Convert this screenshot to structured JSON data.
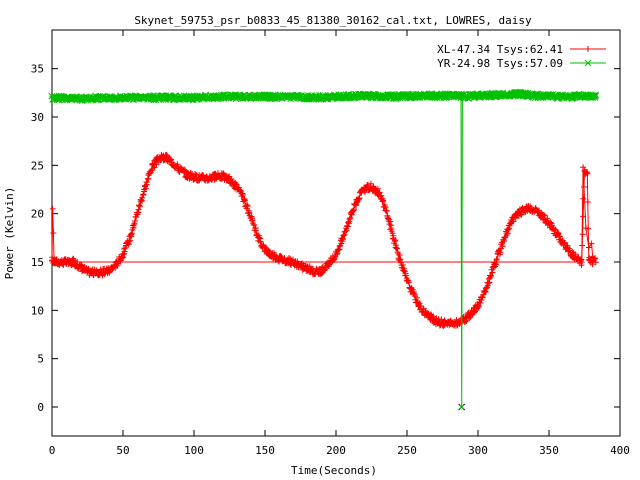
{
  "chart_data": {
    "type": "line",
    "title": "Skynet_59753_psr_b0833_45_81380_30162_cal.txt, LOWRES, daisy",
    "xlabel": "Time(Seconds)",
    "ylabel": "Power (Kelvin)",
    "xlim": [
      0,
      400
    ],
    "ylim": [
      -3,
      39
    ],
    "xticks": [
      0,
      50,
      100,
      150,
      200,
      250,
      300,
      350,
      400
    ],
    "yticks": [
      0,
      5,
      10,
      15,
      20,
      25,
      30,
      35
    ],
    "grid": false,
    "legend_position": "top-right",
    "series": [
      {
        "name": "XL-47.34 Tsys:62.41",
        "color": "#ff0000",
        "marker": "plus",
        "points": [
          [
            0,
            15.2
          ],
          [
            3,
            15.0
          ],
          [
            8,
            15.0
          ],
          [
            12,
            14.9
          ],
          [
            15,
            15.0
          ],
          [
            20,
            14.5
          ],
          [
            25,
            14.0
          ],
          [
            30,
            13.9
          ],
          [
            35,
            13.9
          ],
          [
            40,
            14.1
          ],
          [
            45,
            14.7
          ],
          [
            50,
            15.8
          ],
          [
            55,
            17.5
          ],
          [
            60,
            20.0
          ],
          [
            65,
            22.5
          ],
          [
            70,
            24.7
          ],
          [
            75,
            25.7
          ],
          [
            80,
            25.8
          ],
          [
            85,
            25.3
          ],
          [
            90,
            24.6
          ],
          [
            95,
            24.0
          ],
          [
            100,
            23.8
          ],
          [
            105,
            23.7
          ],
          [
            110,
            23.7
          ],
          [
            115,
            23.8
          ],
          [
            120,
            23.9
          ],
          [
            125,
            23.5
          ],
          [
            130,
            22.8
          ],
          [
            135,
            21.5
          ],
          [
            140,
            19.5
          ],
          [
            145,
            17.6
          ],
          [
            150,
            16.3
          ],
          [
            155,
            15.7
          ],
          [
            160,
            15.4
          ],
          [
            165,
            15.2
          ],
          [
            170,
            14.9
          ],
          [
            175,
            14.6
          ],
          [
            180,
            14.3
          ],
          [
            185,
            14.0
          ],
          [
            190,
            14.1
          ],
          [
            195,
            14.7
          ],
          [
            200,
            15.8
          ],
          [
            205,
            17.5
          ],
          [
            210,
            19.7
          ],
          [
            215,
            21.5
          ],
          [
            220,
            22.5
          ],
          [
            225,
            22.8
          ],
          [
            230,
            22.2
          ],
          [
            235,
            20.5
          ],
          [
            240,
            17.8
          ],
          [
            245,
            15.2
          ],
          [
            250,
            13.1
          ],
          [
            255,
            11.5
          ],
          [
            260,
            10.2
          ],
          [
            265,
            9.4
          ],
          [
            270,
            8.9
          ],
          [
            275,
            8.7
          ],
          [
            280,
            8.6
          ],
          [
            285,
            8.7
          ],
          [
            290,
            9.0
          ],
          [
            295,
            9.6
          ],
          [
            300,
            10.5
          ],
          [
            305,
            12.0
          ],
          [
            310,
            14.0
          ],
          [
            315,
            16.0
          ],
          [
            320,
            18.0
          ],
          [
            325,
            19.5
          ],
          [
            330,
            20.2
          ],
          [
            335,
            20.5
          ],
          [
            340,
            20.3
          ],
          [
            345,
            19.8
          ],
          [
            350,
            19.0
          ],
          [
            355,
            18.0
          ],
          [
            360,
            17.0
          ],
          [
            365,
            16.0
          ],
          [
            370,
            15.3
          ],
          [
            373,
            15.0
          ],
          [
            375,
            24.3
          ],
          [
            377,
            24.3
          ],
          [
            378,
            15.2
          ],
          [
            380,
            15.1
          ],
          [
            383,
            15.1
          ]
        ],
        "spikes": [
          [
            0,
            15.2
          ],
          [
            0.5,
            20.5
          ],
          [
            1,
            18.0
          ],
          [
            1.5,
            15.0
          ],
          [
            373,
            15.0
          ],
          [
            374,
            24.8
          ],
          [
            376,
            18.5
          ],
          [
            378,
            16.5
          ],
          [
            380,
            16.9
          ],
          [
            381,
            15.1
          ]
        ]
      },
      {
        "name": "YR-24.98 Tsys:57.09",
        "color": "#00c000",
        "marker": "cross",
        "points": [
          [
            0,
            32.0
          ],
          [
            20,
            31.9
          ],
          [
            40,
            32.0
          ],
          [
            60,
            32.0
          ],
          [
            80,
            32.0
          ],
          [
            100,
            32.0
          ],
          [
            120,
            32.1
          ],
          [
            140,
            32.1
          ],
          [
            160,
            32.1
          ],
          [
            180,
            32.0
          ],
          [
            200,
            32.1
          ],
          [
            220,
            32.2
          ],
          [
            240,
            32.1
          ],
          [
            260,
            32.2
          ],
          [
            280,
            32.2
          ],
          [
            288,
            32.2
          ],
          [
            288.5,
            0.0
          ],
          [
            289,
            32.1
          ],
          [
            300,
            32.2
          ],
          [
            320,
            32.3
          ],
          [
            330,
            32.4
          ],
          [
            340,
            32.2
          ],
          [
            360,
            32.1
          ],
          [
            380,
            32.2
          ],
          [
            383,
            32.2
          ]
        ]
      }
    ]
  }
}
